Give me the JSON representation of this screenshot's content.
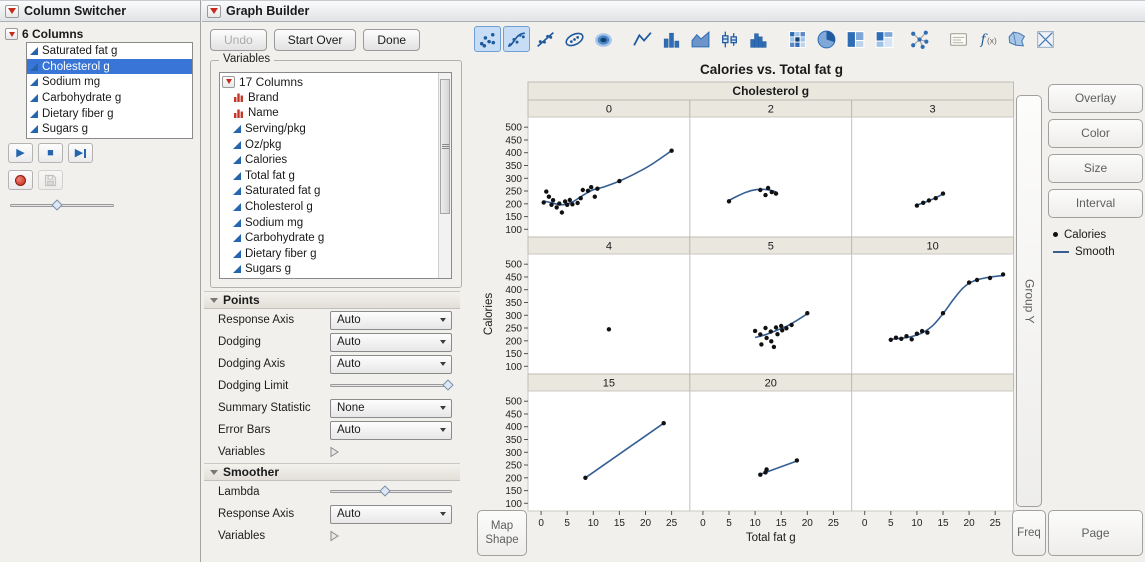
{
  "colors": {
    "selection_blue": "#3875d6",
    "smooth_line": "#355e93",
    "point_black": "#111111",
    "facet_band": "#eae7df",
    "continuous_icon_blue": "#2565ae",
    "nominal_icon_red": "#c0392b"
  },
  "column_switcher": {
    "title": "Column Switcher",
    "columns_label": "6 Columns",
    "items": [
      "Saturated fat g",
      "Cholesterol g",
      "Sodium mg",
      "Carbohydrate g",
      "Dietary fiber g",
      "Sugars g"
    ],
    "selected_item": "Cholesterol g",
    "slider_position": 0.45
  },
  "graph_builder": {
    "title": "Graph Builder",
    "undo_label": "Undo",
    "start_over_label": "Start Over",
    "done_label": "Done",
    "toolbar_icons": [
      "points",
      "smoother",
      "line-of-fit",
      "ellipse",
      "contour",
      "line",
      "bar",
      "area",
      "box-plot",
      "histogram",
      "heatmap",
      "pie",
      "treemap",
      "mosaic",
      "parallel",
      "caption-box",
      "formula",
      "map-shapes",
      "ternary"
    ],
    "toolbar_selected": [
      "points",
      "smoother"
    ],
    "variables": {
      "group_label": "Variables",
      "columns_label": "17 Columns",
      "items": [
        {
          "label": "Brand",
          "type": "nominal"
        },
        {
          "label": "Name",
          "type": "nominal"
        },
        {
          "label": "Serving/pkg",
          "type": "continuous"
        },
        {
          "label": "Oz/pkg",
          "type": "continuous"
        },
        {
          "label": "Calories",
          "type": "continuous"
        },
        {
          "label": "Total fat g",
          "type": "continuous"
        },
        {
          "label": "Saturated fat g",
          "type": "continuous"
        },
        {
          "label": "Cholesterol g",
          "type": "continuous"
        },
        {
          "label": "Sodium mg",
          "type": "continuous"
        },
        {
          "label": "Carbohydrate g",
          "type": "continuous"
        },
        {
          "label": "Dietary fiber g",
          "type": "continuous"
        },
        {
          "label": "Sugars g",
          "type": "continuous"
        }
      ]
    },
    "points_section": {
      "title": "Points",
      "rows": [
        {
          "label": "Response Axis",
          "control": "dropdown",
          "value": "Auto"
        },
        {
          "label": "Dodging",
          "control": "dropdown",
          "value": "Auto"
        },
        {
          "label": "Dodging Axis",
          "control": "dropdown",
          "value": "Auto"
        },
        {
          "label": "Dodging Limit",
          "control": "slider",
          "position": 0.97
        },
        {
          "label": "Summary Statistic",
          "control": "dropdown",
          "value": "None"
        },
        {
          "label": "Error Bars",
          "control": "dropdown",
          "value": "Auto"
        },
        {
          "label": "Variables",
          "control": "disclosure"
        }
      ]
    },
    "smoother_section": {
      "title": "Smoother",
      "rows": [
        {
          "label": "Lambda",
          "control": "slider",
          "position": 0.45
        },
        {
          "label": "Response Axis",
          "control": "dropdown",
          "value": "Auto"
        },
        {
          "label": "Variables",
          "control": "disclosure"
        }
      ]
    },
    "drop_zones": {
      "overlay": "Overlay",
      "color": "Color",
      "size": "Size",
      "interval": "Interval",
      "group_y": "Group Y",
      "map_shape": "Map Shape",
      "freq": "Freq",
      "page": "Page"
    },
    "legend": [
      {
        "label": "Calories",
        "marker": "point"
      },
      {
        "label": "Smooth",
        "marker": "line"
      }
    ]
  },
  "chart_data": {
    "type": "scatter",
    "title": "Calories vs. Total fat g",
    "xlabel": "Total fat g",
    "ylabel": "Calories",
    "facet_variable": "Cholesterol g",
    "facet_columns": 3,
    "grid": false,
    "xlim": [
      -2.5,
      28.5
    ],
    "ylim": [
      70,
      540
    ],
    "xticks": [
      0,
      5,
      10,
      15,
      20,
      25
    ],
    "yticks": [
      100,
      150,
      200,
      250,
      300,
      350,
      400,
      450,
      500
    ],
    "facets": [
      {
        "label": "0",
        "points": [
          [
            0.5,
            205
          ],
          [
            1,
            248
          ],
          [
            1.5,
            228
          ],
          [
            2,
            196
          ],
          [
            2.3,
            214
          ],
          [
            3,
            186
          ],
          [
            3.5,
            201
          ],
          [
            4,
            166
          ],
          [
            4.6,
            209
          ],
          [
            5,
            196
          ],
          [
            5.5,
            215
          ],
          [
            6,
            198
          ],
          [
            7,
            203
          ],
          [
            7.6,
            222
          ],
          [
            8,
            254
          ],
          [
            9,
            251
          ],
          [
            9.6,
            265
          ],
          [
            10.3,
            228
          ],
          [
            10.8,
            259
          ],
          [
            15,
            289
          ],
          [
            25,
            408
          ]
        ],
        "smooth": [
          [
            0.5,
            211
          ],
          [
            2,
            204
          ],
          [
            4,
            196
          ],
          [
            6,
            207
          ],
          [
            8,
            233
          ],
          [
            10,
            255
          ],
          [
            12,
            266
          ],
          [
            15,
            289
          ],
          [
            18,
            318
          ],
          [
            21,
            352
          ],
          [
            25,
            408
          ]
        ]
      },
      {
        "label": "2",
        "points": [
          [
            5,
            210
          ],
          [
            11,
            254
          ],
          [
            12,
            234
          ],
          [
            12.5,
            262
          ],
          [
            13.2,
            246
          ],
          [
            14,
            240
          ]
        ],
        "smooth": [
          [
            5,
            213
          ],
          [
            6.5,
            229
          ],
          [
            8,
            243
          ],
          [
            9.5,
            253
          ],
          [
            11,
            257
          ],
          [
            12.5,
            255
          ],
          [
            14,
            247
          ]
        ]
      },
      {
        "label": "3",
        "points": [
          [
            10,
            193
          ],
          [
            11.2,
            204
          ],
          [
            12.3,
            213
          ],
          [
            13.6,
            222
          ],
          [
            15,
            240
          ]
        ],
        "smooth": [
          [
            10,
            195
          ],
          [
            11.5,
            206
          ],
          [
            13,
            218
          ],
          [
            15,
            238
          ]
        ]
      },
      {
        "label": "4",
        "points": [
          [
            13,
            245
          ]
        ],
        "smooth": []
      },
      {
        "label": "5",
        "points": [
          [
            10,
            239
          ],
          [
            11,
            225
          ],
          [
            11.2,
            186
          ],
          [
            12,
            250
          ],
          [
            12.2,
            211
          ],
          [
            13,
            236
          ],
          [
            13.1,
            198
          ],
          [
            13.6,
            176
          ],
          [
            14,
            252
          ],
          [
            14.3,
            226
          ],
          [
            15,
            258
          ],
          [
            15.2,
            241
          ],
          [
            16,
            249
          ],
          [
            17,
            262
          ],
          [
            20,
            308
          ]
        ],
        "smooth": [
          [
            10,
            213
          ],
          [
            12,
            224
          ],
          [
            14,
            240
          ],
          [
            16,
            257
          ],
          [
            18,
            280
          ],
          [
            20,
            306
          ]
        ]
      },
      {
        "label": "10",
        "points": [
          [
            5,
            204
          ],
          [
            6,
            212
          ],
          [
            7,
            208
          ],
          [
            8,
            218
          ],
          [
            9,
            206
          ],
          [
            10,
            228
          ],
          [
            11,
            238
          ],
          [
            12,
            232
          ],
          [
            15,
            308
          ],
          [
            20,
            428
          ],
          [
            21.5,
            438
          ],
          [
            24,
            446
          ],
          [
            26.5,
            460
          ]
        ],
        "smooth": [
          [
            5,
            206
          ],
          [
            7,
            210
          ],
          [
            9,
            217
          ],
          [
            11,
            231
          ],
          [
            13,
            259
          ],
          [
            15,
            306
          ],
          [
            17,
            362
          ],
          [
            19,
            410
          ],
          [
            21,
            435
          ],
          [
            23.5,
            448
          ],
          [
            26.5,
            456
          ]
        ]
      },
      {
        "label": "15",
        "points": [
          [
            8.5,
            200
          ],
          [
            23.5,
            414
          ]
        ],
        "smooth": [
          [
            8.5,
            200
          ],
          [
            23.5,
            414
          ]
        ]
      },
      {
        "label": "20",
        "points": [
          [
            11,
            212
          ],
          [
            12,
            221
          ],
          [
            12.2,
            233
          ],
          [
            18,
            268
          ]
        ],
        "smooth": [
          [
            11.3,
            216
          ],
          [
            18,
            266
          ]
        ]
      },
      {
        "label": "",
        "points": [],
        "smooth": []
      }
    ]
  }
}
